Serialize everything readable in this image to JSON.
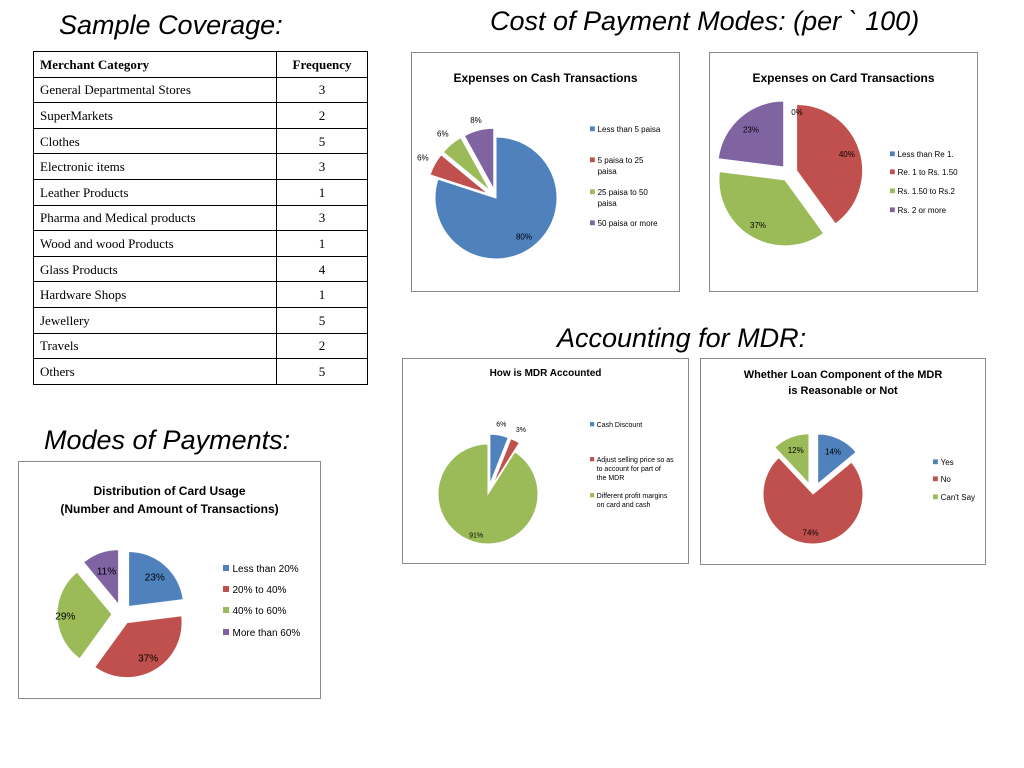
{
  "headings": {
    "sample_coverage": "Sample Coverage:",
    "cost_of_payment_modes": "Cost of Payment Modes: (per ` 100)",
    "accounting_for_mdr": "Accounting for MDR:",
    "modes_of_payments": "Modes of Payments:"
  },
  "coverage_table": {
    "headers": [
      "Merchant Category",
      "Frequency"
    ],
    "rows": [
      [
        "General Departmental Stores",
        "3"
      ],
      [
        "SuperMarkets",
        "2"
      ],
      [
        "Clothes",
        "5"
      ],
      [
        "Electronic items",
        "3"
      ],
      [
        "Leather Products",
        "1"
      ],
      [
        "Pharma and Medical products",
        "3"
      ],
      [
        "Wood and wood Products",
        "1"
      ],
      [
        "Glass Products",
        "4"
      ],
      [
        "Hardware Shops",
        "1"
      ],
      [
        "Jewellery",
        "5"
      ],
      [
        "Travels",
        "2"
      ],
      [
        "Others",
        "5"
      ]
    ]
  },
  "colors": {
    "blue": "#4f81bd",
    "red": "#c0504d",
    "green": "#9bbb59",
    "purple": "#8064a2"
  },
  "chart_data": [
    {
      "type": "pie",
      "title": [
        "Expenses on Cash Transactions"
      ],
      "series": [
        {
          "categories": [
            "Less than 5 paisa",
            "5 paisa to 25 paisa",
            "25 paisa to 50 paisa",
            "50 paisa or more"
          ],
          "values": [
            80,
            6,
            6,
            8
          ],
          "labels": [
            "80%",
            "6%",
            "6%",
            "8%"
          ],
          "colors": [
            "#4f81bd",
            "#c0504d",
            "#9bbb59",
            "#8064a2"
          ],
          "exploded": [
            false,
            true,
            true,
            true
          ]
        }
      ],
      "legend": "right"
    },
    {
      "type": "pie",
      "title": [
        "Expenses on Card Transactions"
      ],
      "series": [
        {
          "categories": [
            "Less than Re 1.",
            "Re. 1 to Rs. 1.50",
            "Rs. 1.50 to Rs.2",
            "Rs. 2 or more"
          ],
          "values": [
            0,
            40,
            37,
            23
          ],
          "labels": [
            "0%",
            "40%",
            "37%",
            "23%"
          ],
          "colors": [
            "#4f81bd",
            "#c0504d",
            "#9bbb59",
            "#8064a2"
          ],
          "exploded": [
            false,
            true,
            true,
            true
          ]
        }
      ],
      "legend": "right"
    },
    {
      "type": "pie",
      "title": [
        "How is MDR Accounted"
      ],
      "series": [
        {
          "categories": [
            "Cash Discount",
            "Adjust selling price so as to account for part of the MDR",
            "Different profit margins on card and cash"
          ],
          "values": [
            6,
            3,
            91
          ],
          "labels": [
            "6%",
            "3%",
            "91%"
          ],
          "colors": [
            "#4f81bd",
            "#c0504d",
            "#9bbb59"
          ],
          "exploded": [
            true,
            true,
            false
          ]
        }
      ],
      "legend": "right"
    },
    {
      "type": "pie",
      "title": [
        "Whether Loan Component of the MDR",
        "is Reasonable or Not"
      ],
      "series": [
        {
          "categories": [
            "Yes",
            "No",
            "Can't Say"
          ],
          "values": [
            14,
            74,
            12
          ],
          "labels": [
            "14%",
            "74%",
            "12%"
          ],
          "colors": [
            "#4f81bd",
            "#c0504d",
            "#9bbb59"
          ],
          "exploded": [
            true,
            false,
            true
          ]
        }
      ],
      "legend": "right"
    },
    {
      "type": "pie",
      "title": [
        "Distribution of Card Usage",
        "(Number and Amount of Transactions)"
      ],
      "series": [
        {
          "categories": [
            "Less than 20%",
            "20% to 40%",
            "40% to 60%",
            "More than 60%"
          ],
          "values": [
            23,
            37,
            29,
            11
          ],
          "labels": [
            "23%",
            "37%",
            "29%",
            "11%"
          ],
          "colors": [
            "#4f81bd",
            "#c0504d",
            "#9bbb59",
            "#8064a2"
          ],
          "exploded": [
            true,
            true,
            true,
            true
          ]
        }
      ],
      "legend": "right"
    }
  ]
}
